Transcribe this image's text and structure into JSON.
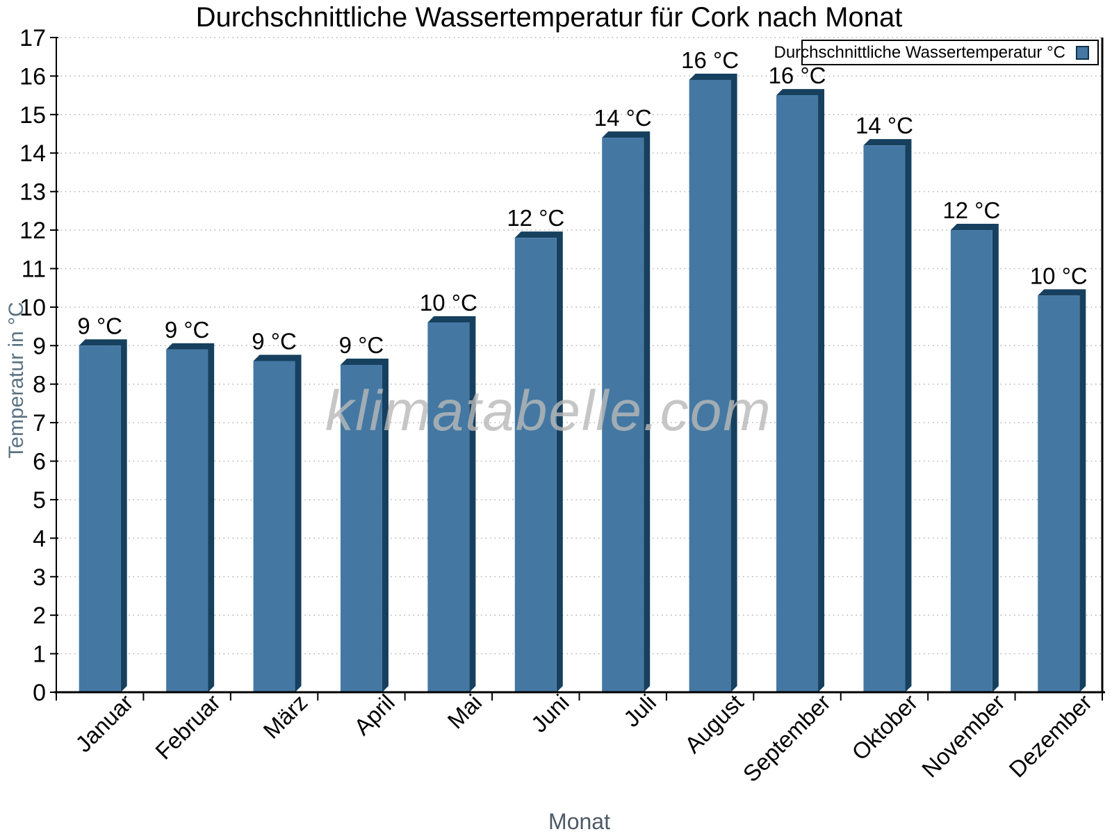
{
  "page": {
    "background": "#ffffff"
  },
  "chart_data": {
    "type": "bar",
    "title": "Durchschnittliche Wassertemperatur für Cork nach Monat",
    "categories": [
      "Januar",
      "Februar",
      "März",
      "April",
      "Mai",
      "Juni",
      "Juli",
      "August",
      "September",
      "Oktober",
      "November",
      "Dezember"
    ],
    "values": [
      9.0,
      8.9,
      8.6,
      8.5,
      9.6,
      11.8,
      14.4,
      15.9,
      15.5,
      14.2,
      12.0,
      10.3
    ],
    "bar_labels": [
      "9 °C",
      "9 °C",
      "9 °C",
      "9 °C",
      "10 °C",
      "12 °C",
      "14 °C",
      "16 °C",
      "16 °C",
      "14 °C",
      "12 °C",
      "10 °C"
    ],
    "xlabel": "Monat",
    "ylabel": "Temperatur in °C",
    "ylim": [
      0,
      17
    ],
    "ytick_step": 1,
    "grid": "horizontal-dotted",
    "legend": {
      "label": "Durchschnittliche Wassertemperatur °C",
      "position": "top-right"
    },
    "watermark": "klimatabelle.com",
    "colors": {
      "bar_face": "#4478A2",
      "bar_side": "#16405E",
      "axis": "#000000",
      "grid": "#b0b0b0",
      "axis_title": "#5a7282",
      "xlabel_color": "#4d5a66",
      "watermark": "#b9b9b9"
    }
  }
}
